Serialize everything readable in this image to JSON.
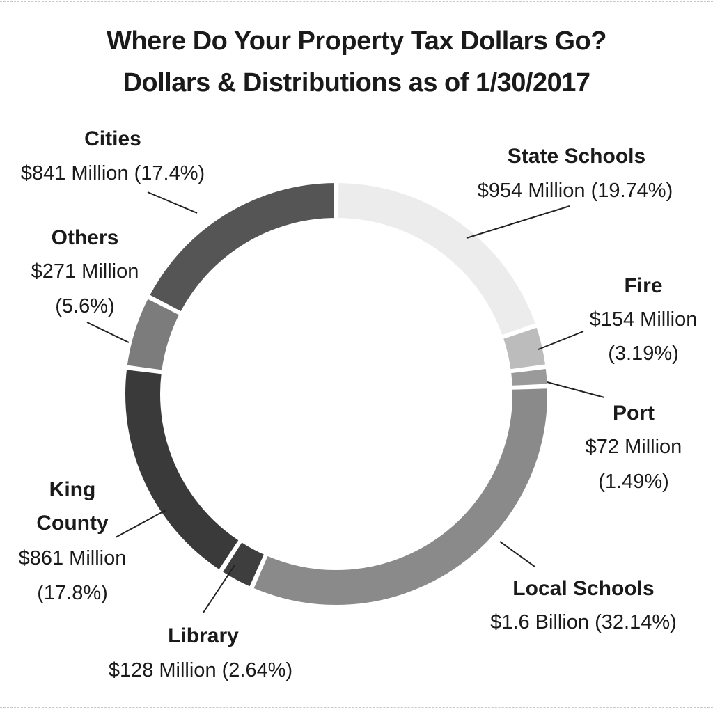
{
  "title": "Where Do Your Property Tax Dollars Go?",
  "subtitle": "Dollars & Distributions as of 1/30/2017",
  "chart_data": {
    "type": "pie",
    "donut": true,
    "legend": "none",
    "slices": [
      {
        "name": "State Schools",
        "amount": "$954 Million",
        "percent": 19.74,
        "percent_label": "(19.74%)",
        "color": "#ececec"
      },
      {
        "name": "Fire",
        "amount": "$154 Million",
        "percent": 3.19,
        "percent_label": "(3.19%)",
        "color": "#bcbcbc"
      },
      {
        "name": "Port",
        "amount": "$72 Million",
        "percent": 1.49,
        "percent_label": "(1.49%)",
        "color": "#9a9a9a"
      },
      {
        "name": "Local Schools",
        "amount": "$1.6 Billion",
        "percent": 32.14,
        "percent_label": "(32.14%)",
        "color": "#8a8a8a"
      },
      {
        "name": "Library",
        "amount": "$128 Million",
        "percent": 2.64,
        "percent_label": "(2.64%)",
        "color": "#3e3e3e"
      },
      {
        "name": "King County",
        "amount": "$861 Million",
        "percent": 17.8,
        "percent_label": "(17.8%)",
        "color": "#3a3a3a"
      },
      {
        "name": "Others",
        "amount": "$271 Million",
        "percent": 5.6,
        "percent_label": "(5.6%)",
        "color": "#7c7c7c"
      },
      {
        "name": "Cities",
        "amount": "$841 Million",
        "percent": 17.4,
        "percent_label": "(17.4%)",
        "color": "#555555"
      }
    ]
  }
}
